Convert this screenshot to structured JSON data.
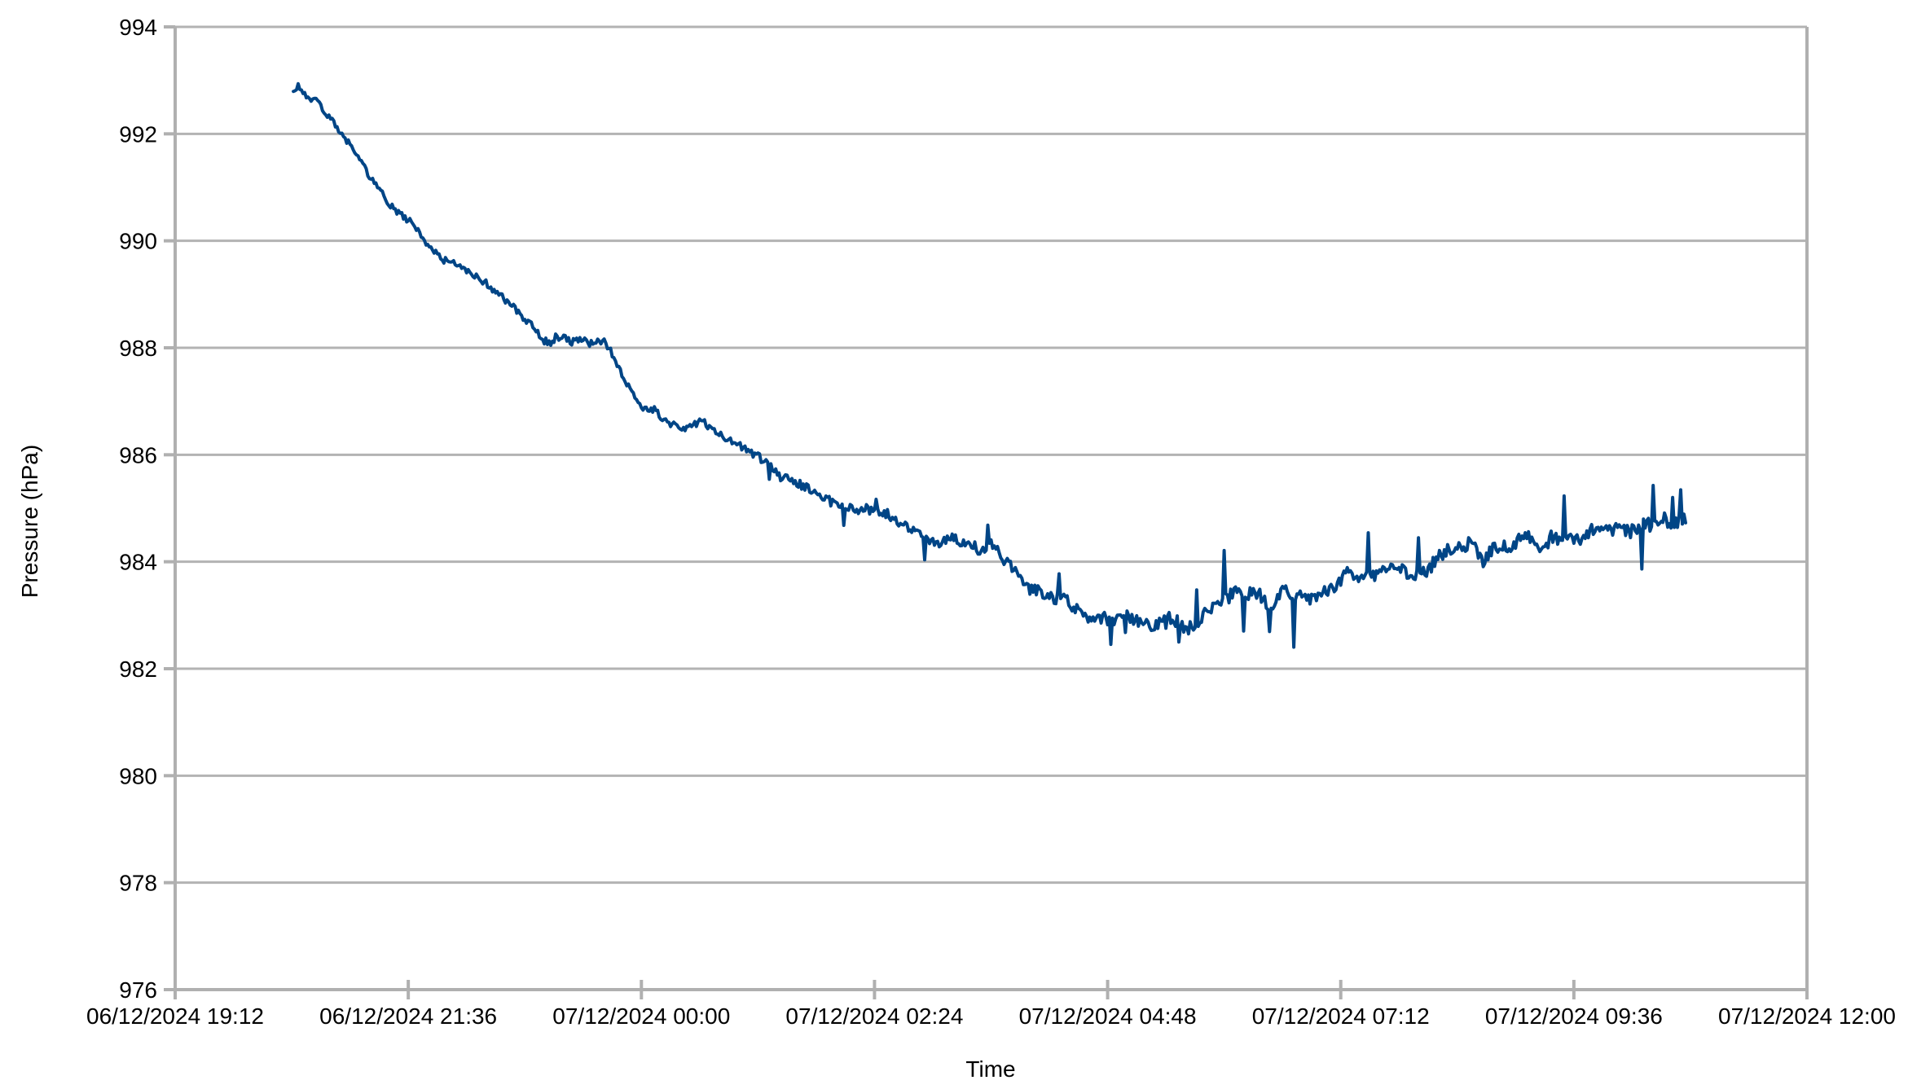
{
  "chart_data": {
    "type": "line",
    "title": "",
    "xlabel": "Time",
    "ylabel": "Pressure (hPa)",
    "legend": "none",
    "grid": "horizontal",
    "ylim": [
      976,
      994
    ],
    "y_ticks": [
      994,
      992,
      990,
      988,
      986,
      984,
      982,
      980,
      978,
      976
    ],
    "x_tick_labels": [
      "06/12/2024 19:12",
      "06/12/2024 21:36",
      "07/12/2024 00:00",
      "07/12/2024 02:24",
      "07/12/2024 04:48",
      "07/12/2024 07:12",
      "07/12/2024 09:36",
      "07/12/2024 12:00"
    ],
    "x_tick_minutes": [
      0,
      144,
      288,
      432,
      576,
      720,
      864,
      1008
    ],
    "xlim_minutes": [
      0,
      1008
    ],
    "colors": {
      "series": "#004586",
      "grid": "#b3b3b3",
      "axis": "#b0b0b0",
      "text": "#000000",
      "background": "#ffffff"
    },
    "series": [
      {
        "name": "Pressure",
        "color": "#004586",
        "start_minute": 73,
        "end_minute": 933,
        "sample_step_minutes": 1,
        "noise_seed": 1337,
        "anchors_minute_hpa": [
          [
            73,
            992.82
          ],
          [
            76,
            992.9
          ],
          [
            80,
            992.7
          ],
          [
            84,
            992.58
          ],
          [
            88,
            992.63
          ],
          [
            92,
            992.4
          ],
          [
            96,
            992.3
          ],
          [
            100,
            992.12
          ],
          [
            104,
            991.95
          ],
          [
            108,
            991.8
          ],
          [
            112,
            991.65
          ],
          [
            116,
            991.42
          ],
          [
            120,
            991.2
          ],
          [
            124,
            991.05
          ],
          [
            128,
            990.9
          ],
          [
            132,
            990.68
          ],
          [
            136,
            990.55
          ],
          [
            140,
            990.5
          ],
          [
            144,
            990.42
          ],
          [
            148,
            990.3
          ],
          [
            152,
            990.12
          ],
          [
            156,
            989.95
          ],
          [
            160,
            989.82
          ],
          [
            164,
            989.72
          ],
          [
            168,
            989.6
          ],
          [
            172,
            989.55
          ],
          [
            176,
            989.48
          ],
          [
            180,
            989.42
          ],
          [
            185,
            989.3
          ],
          [
            190,
            989.22
          ],
          [
            195,
            989.15
          ],
          [
            200,
            989.05
          ],
          [
            205,
            988.92
          ],
          [
            210,
            988.78
          ],
          [
            215,
            988.6
          ],
          [
            220,
            988.45
          ],
          [
            224,
            988.3
          ],
          [
            228,
            988.16
          ],
          [
            232,
            988.1
          ],
          [
            236,
            988.22
          ],
          [
            240,
            988.15
          ],
          [
            244,
            988.05
          ],
          [
            248,
            988.08
          ],
          [
            252,
            988.22
          ],
          [
            256,
            988.12
          ],
          [
            260,
            988.2
          ],
          [
            264,
            988.15
          ],
          [
            267,
            988.05
          ],
          [
            270,
            987.88
          ],
          [
            273,
            987.7
          ],
          [
            276,
            987.55
          ],
          [
            279,
            987.35
          ],
          [
            282,
            987.2
          ],
          [
            285,
            987.05
          ],
          [
            288,
            986.95
          ],
          [
            292,
            986.88
          ],
          [
            296,
            986.82
          ],
          [
            300,
            986.72
          ],
          [
            305,
            986.62
          ],
          [
            310,
            986.56
          ],
          [
            315,
            986.5
          ],
          [
            320,
            986.58
          ],
          [
            325,
            986.64
          ],
          [
            330,
            986.56
          ],
          [
            335,
            986.46
          ],
          [
            340,
            986.36
          ],
          [
            345,
            986.28
          ],
          [
            350,
            986.2
          ],
          [
            355,
            986.1
          ],
          [
            360,
            986.0
          ],
          [
            365,
            985.86
          ],
          [
            370,
            985.72
          ],
          [
            375,
            985.6
          ],
          [
            380,
            985.52
          ],
          [
            385,
            985.46
          ],
          [
            390,
            985.4
          ],
          [
            395,
            985.32
          ],
          [
            400,
            985.18
          ],
          [
            405,
            985.05
          ],
          [
            410,
            984.96
          ],
          [
            415,
            984.92
          ],
          [
            419,
            985.02
          ],
          [
            424,
            985.08
          ],
          [
            429,
            985.05
          ],
          [
            434,
            985.0
          ],
          [
            440,
            984.95
          ],
          [
            446,
            984.85
          ],
          [
            451,
            984.75
          ],
          [
            456,
            984.65
          ],
          [
            460,
            984.55
          ],
          [
            464,
            984.48
          ],
          [
            468,
            984.45
          ],
          [
            472,
            984.42
          ],
          [
            476,
            984.48
          ],
          [
            480,
            984.55
          ],
          [
            484,
            984.48
          ],
          [
            488,
            984.42
          ],
          [
            492,
            984.3
          ],
          [
            496,
            984.2
          ],
          [
            500,
            984.25
          ],
          [
            504,
            984.3
          ],
          [
            508,
            984.2
          ],
          [
            512,
            984.0
          ],
          [
            516,
            983.9
          ],
          [
            520,
            983.78
          ],
          [
            524,
            983.68
          ],
          [
            528,
            983.6
          ],
          [
            532,
            983.56
          ],
          [
            536,
            983.5
          ],
          [
            540,
            983.42
          ],
          [
            544,
            983.32
          ],
          [
            548,
            983.28
          ],
          [
            552,
            983.24
          ],
          [
            556,
            983.18
          ],
          [
            560,
            983.1
          ],
          [
            564,
            983.02
          ],
          [
            568,
            982.98
          ],
          [
            572,
            982.95
          ],
          [
            576,
            982.9
          ],
          [
            580,
            982.9
          ],
          [
            584,
            982.92
          ],
          [
            588,
            982.95
          ],
          [
            592,
            982.86
          ],
          [
            596,
            982.8
          ],
          [
            600,
            982.83
          ],
          [
            604,
            982.86
          ],
          [
            608,
            982.88
          ],
          [
            612,
            982.9
          ],
          [
            616,
            982.88
          ],
          [
            620,
            982.84
          ],
          [
            624,
            982.8
          ],
          [
            628,
            982.86
          ],
          [
            632,
            982.95
          ],
          [
            636,
            983.0
          ],
          [
            640,
            983.05
          ],
          [
            644,
            983.1
          ],
          [
            648,
            983.18
          ],
          [
            652,
            983.25
          ],
          [
            656,
            983.3
          ],
          [
            660,
            983.33
          ],
          [
            664,
            983.38
          ],
          [
            668,
            983.4
          ],
          [
            671,
            983.32
          ],
          [
            674,
            983.22
          ],
          [
            677,
            983.2
          ],
          [
            680,
            983.3
          ],
          [
            683,
            983.45
          ],
          [
            686,
            983.55
          ],
          [
            689,
            983.48
          ],
          [
            692,
            983.42
          ],
          [
            696,
            983.36
          ],
          [
            700,
            983.32
          ],
          [
            704,
            983.3
          ],
          [
            708,
            983.32
          ],
          [
            712,
            983.4
          ],
          [
            716,
            983.52
          ],
          [
            720,
            983.65
          ],
          [
            724,
            983.75
          ],
          [
            728,
            983.8
          ],
          [
            732,
            983.85
          ],
          [
            736,
            983.85
          ],
          [
            740,
            983.82
          ],
          [
            744,
            983.8
          ],
          [
            748,
            983.8
          ],
          [
            752,
            983.76
          ],
          [
            756,
            983.72
          ],
          [
            760,
            983.75
          ],
          [
            764,
            983.8
          ],
          [
            768,
            983.85
          ],
          [
            772,
            983.92
          ],
          [
            776,
            984.0
          ],
          [
            780,
            984.08
          ],
          [
            784,
            984.16
          ],
          [
            788,
            984.2
          ],
          [
            792,
            984.25
          ],
          [
            796,
            984.28
          ],
          [
            800,
            984.3
          ],
          [
            804,
            984.18
          ],
          [
            808,
            984.05
          ],
          [
            812,
            984.15
          ],
          [
            816,
            984.25
          ],
          [
            820,
            984.3
          ],
          [
            824,
            984.28
          ],
          [
            828,
            984.38
          ],
          [
            832,
            984.44
          ],
          [
            836,
            984.46
          ],
          [
            840,
            984.42
          ],
          [
            844,
            984.4
          ],
          [
            848,
            984.36
          ],
          [
            852,
            984.44
          ],
          [
            856,
            984.52
          ],
          [
            860,
            984.52
          ],
          [
            864,
            984.5
          ],
          [
            868,
            984.5
          ],
          [
            872,
            984.54
          ],
          [
            876,
            984.58
          ],
          [
            880,
            984.56
          ],
          [
            884,
            984.54
          ],
          [
            888,
            984.56
          ],
          [
            892,
            984.58
          ],
          [
            896,
            984.62
          ],
          [
            900,
            984.65
          ],
          [
            904,
            984.65
          ],
          [
            908,
            984.66
          ],
          [
            912,
            984.68
          ],
          [
            916,
            984.7
          ],
          [
            920,
            984.72
          ],
          [
            924,
            984.75
          ],
          [
            928,
            984.78
          ],
          [
            931,
            984.82
          ],
          [
            933,
            984.85
          ]
        ],
        "noise_profile_minute_amp": [
          [
            73,
            0.055
          ],
          [
            150,
            0.075
          ],
          [
            230,
            0.1
          ],
          [
            300,
            0.08
          ],
          [
            390,
            0.1
          ],
          [
            470,
            0.12
          ],
          [
            560,
            0.14
          ],
          [
            650,
            0.17
          ],
          [
            750,
            0.15
          ],
          [
            850,
            0.15
          ],
          [
            933,
            0.16
          ]
        ],
        "spikes_minute_delta": [
          [
            367,
            -0.25
          ],
          [
            413,
            -0.28
          ],
          [
            433,
            0.25
          ],
          [
            463,
            -0.4
          ],
          [
            502,
            0.3
          ],
          [
            546,
            0.42
          ],
          [
            578,
            -0.45
          ],
          [
            587,
            -0.3
          ],
          [
            612,
            -0.32
          ],
          [
            620,
            -0.32
          ],
          [
            631,
            0.62
          ],
          [
            648,
            0.85
          ],
          [
            660,
            -0.62
          ],
          [
            676,
            -0.58
          ],
          [
            691,
            -0.95
          ],
          [
            737,
            0.88
          ],
          [
            768,
            0.8
          ],
          [
            858,
            0.9
          ],
          [
            906,
            -0.85
          ],
          [
            913,
            0.68
          ],
          [
            925,
            0.5
          ],
          [
            930,
            0.58
          ]
        ]
      }
    ]
  }
}
